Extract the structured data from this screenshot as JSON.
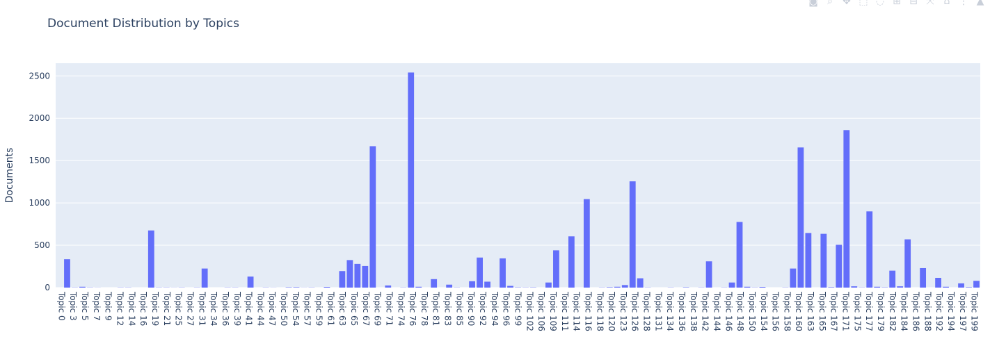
{
  "colors": {
    "bar": "#636efa",
    "plot_bg": "#e5ecf6",
    "grid": "#ffffff",
    "text": "#2a3f5f"
  },
  "modebar": {
    "icons": [
      "camera-icon",
      "zoom-icon",
      "pan-icon",
      "box-select-icon",
      "lasso-icon",
      "zoom-in-icon",
      "zoom-out-icon",
      "autoscale-icon",
      "home-icon",
      "more-icon",
      "plotly-logo-icon"
    ],
    "glyphs": [
      "◙",
      "⌕",
      "✥",
      "⬚",
      "◌",
      "⊞",
      "⊟",
      "⤧",
      "⌂",
      "⋮",
      "▲"
    ]
  },
  "chart_data": {
    "type": "bar",
    "title": "Document Distribution by Topics",
    "xlabel": "",
    "ylabel": "Documents",
    "ylim": [
      0,
      2650
    ],
    "yticks": [
      0,
      500,
      1000,
      1500,
      2000,
      2500
    ],
    "grid": true,
    "legend": "none",
    "x_tick_labels": [
      "Topic 0",
      "Topic 3",
      "Topic 5",
      "Topic 7",
      "Topic 9",
      "Topic 12",
      "Topic 14",
      "Topic 16",
      "Topic 19",
      "Topic 21",
      "Topic 25",
      "Topic 27",
      "Topic 31",
      "Topic 34",
      "Topic 36",
      "Topic 39",
      "Topic 41",
      "Topic 44",
      "Topic 47",
      "Topic 50",
      "Topic 54",
      "Topic 57",
      "Topic 59",
      "Topic 61",
      "Topic 63",
      "Topic 65",
      "Topic 67",
      "Topic 69",
      "Topic 71",
      "Topic 74",
      "Topic 76",
      "Topic 78",
      "Topic 81",
      "Topic 83",
      "Topic 85",
      "Topic 90",
      "Topic 92",
      "Topic 94",
      "Topic 96",
      "Topic 99",
      "Topic 102",
      "Topic 106",
      "Topic 109",
      "Topic 111",
      "Topic 114",
      "Topic 116",
      "Topic 118",
      "Topic 120",
      "Topic 123",
      "Topic 126",
      "Topic 128",
      "Topic 131",
      "Topic 134",
      "Topic 136",
      "Topic 138",
      "Topic 142",
      "Topic 144",
      "Topic 146",
      "Topic 148",
      "Topic 150",
      "Topic 154",
      "Topic 156",
      "Topic 158",
      "Topic 160",
      "Topic 163",
      "Topic 165",
      "Topic 167",
      "Topic 171",
      "Topic 175",
      "Topic 177",
      "Topic 179",
      "Topic 182",
      "Topic 184",
      "Topic 186",
      "Topic 188",
      "Topic 192",
      "Topic 194",
      "Topic 197",
      "Topic 199"
    ],
    "values": [
      0,
      335,
      2,
      10,
      2,
      1,
      0,
      0,
      2,
      2,
      0,
      0,
      675,
      2,
      2,
      1,
      2,
      0,
      2,
      225,
      0,
      0,
      2,
      2,
      0,
      130,
      0,
      2,
      1,
      0,
      4,
      5,
      1,
      2,
      0,
      8,
      0,
      195,
      325,
      280,
      255,
      1670,
      0,
      25,
      0,
      2,
      2540,
      10,
      0,
      100,
      0,
      35,
      2,
      0,
      75,
      355,
      70,
      0,
      345,
      20,
      3,
      2,
      3,
      0,
      60,
      440,
      0,
      605,
      0,
      1045,
      0,
      2,
      5,
      10,
      30,
      1255,
      110,
      2,
      0,
      0,
      2,
      0,
      4,
      0,
      2,
      310,
      0,
      2,
      60,
      775,
      10,
      2,
      8,
      0,
      0,
      2,
      225,
      1655,
      645,
      0,
      635,
      5,
      505,
      1860,
      15,
      2,
      900,
      10,
      3,
      200,
      15,
      570,
      0,
      230,
      0,
      115,
      10,
      0,
      50,
      5,
      80
    ]
  }
}
